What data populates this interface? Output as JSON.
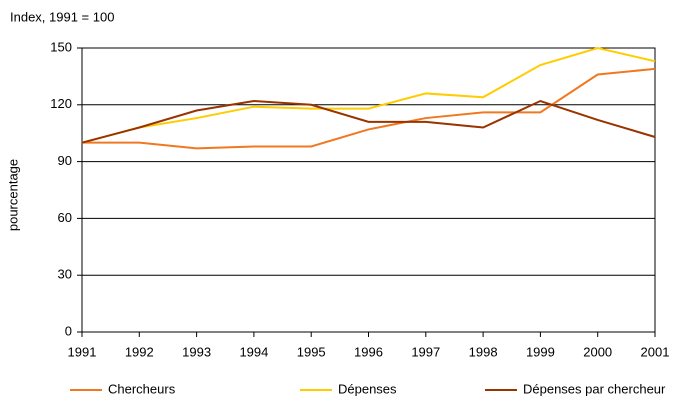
{
  "chart_data": {
    "type": "line",
    "title": "Index, 1991 = 100",
    "y_label": "pourcentage",
    "x": [
      1991,
      1992,
      1993,
      1994,
      1995,
      1996,
      1997,
      1998,
      1999,
      2000,
      2001
    ],
    "xlim": [
      1991,
      2001
    ],
    "xticks": [
      1991,
      1992,
      1993,
      1994,
      1995,
      1996,
      1997,
      1998,
      1999,
      2000,
      2001
    ],
    "ylim": [
      0,
      150
    ],
    "yticks": [
      0,
      30,
      60,
      90,
      120,
      150
    ],
    "grid": true,
    "legend": "bottom",
    "series": [
      {
        "name": "Chercheurs",
        "color": "#f07820",
        "values": [
          100,
          100,
          97,
          98,
          98,
          107,
          113,
          116,
          116,
          136,
          139
        ]
      },
      {
        "name": "Dépenses",
        "color": "#ffcc00",
        "values": [
          100,
          108,
          113,
          119,
          118,
          118,
          126,
          124,
          141,
          150,
          143
        ]
      },
      {
        "name": "Dépenses par chercheur",
        "color": "#993300",
        "values": [
          100,
          108,
          117,
          122,
          120,
          111,
          111,
          108,
          122,
          112,
          103
        ]
      }
    ]
  }
}
